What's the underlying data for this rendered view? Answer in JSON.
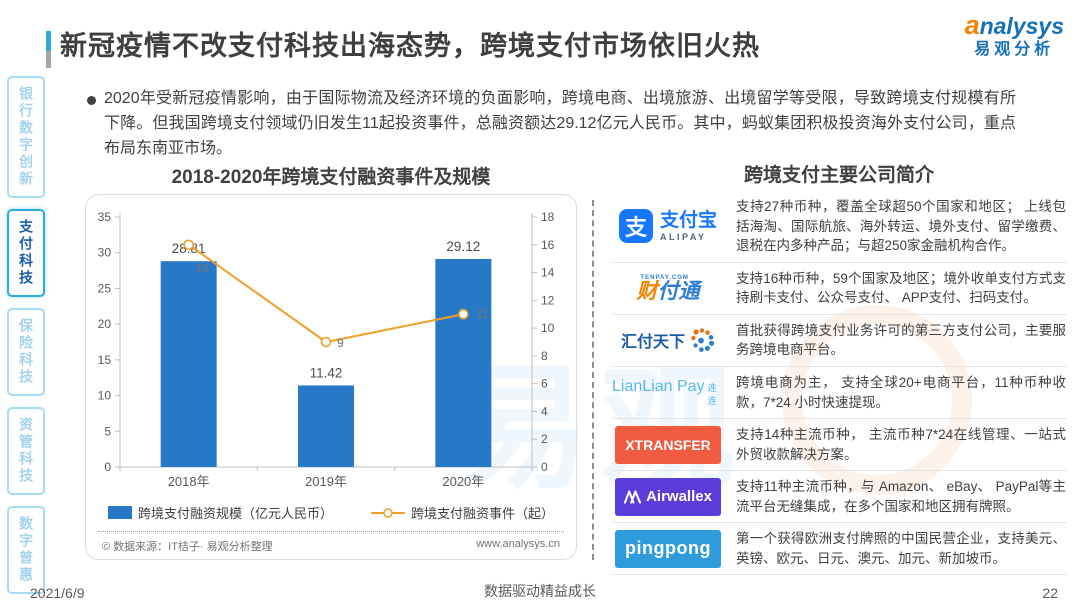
{
  "header": {
    "title": "新冠疫情不改支付科技出海态势，跨境支付市场依旧火热",
    "logo": {
      "brand_a": "a",
      "brand_rest": "nalysys",
      "brand_cn": "易观分析"
    }
  },
  "sidebar": {
    "tabs": [
      {
        "label": "银行数字创新",
        "active": false
      },
      {
        "label": "支付科技",
        "active": true
      },
      {
        "label": "保险科技",
        "active": false
      },
      {
        "label": "资管科技",
        "active": false
      },
      {
        "label": "数字普惠",
        "active": false
      }
    ]
  },
  "summary": {
    "text": "2020年受新冠疫情影响，由于国际物流及经济环境的负面影响，跨境电商、出境旅游、出境留学等受限，导致跨境支付规模有所下降。但我国跨境支付领域仍旧发生11起投资事件，总融资额达29.12亿元人民币。其中，蚂蚁集团积极投资海外支付公司，重点布局东南亚市场。"
  },
  "chart_data": {
    "type": "bar",
    "title": "2018-2020年跨境支付融资事件及规模",
    "categories": [
      "2018年",
      "2019年",
      "2020年"
    ],
    "series": [
      {
        "name": "跨境支付融资规模（亿元人民币）",
        "type": "bar",
        "axis": "left",
        "color": "#2878C8",
        "values": [
          28.81,
          11.42,
          29.12
        ]
      },
      {
        "name": "跨境支付融资事件（起）",
        "type": "line",
        "axis": "right",
        "color": "#EFA028",
        "values": [
          16,
          9,
          11
        ]
      }
    ],
    "left_axis": {
      "min": 0,
      "max": 35,
      "step": 5
    },
    "right_axis": {
      "min": 0,
      "max": 18,
      "step": 2
    },
    "grid": false,
    "legend_position": "bottom",
    "source": "© 数据来源：IT桔子· 易观分析整理",
    "website": "www.analysys.cn"
  },
  "companies": {
    "title": "跨境支付主要公司简介",
    "rows": [
      {
        "id": "alipay",
        "logo": {
          "icon_char": "支",
          "icon_bg": "#1677FF",
          "name_cn": "支付宝",
          "name_en": "ALIPAY"
        },
        "desc": "支持27种币种，覆盖全球超50个国家和地区； 上线包括海淘、国际航旅、海外转运、境外支付、留学缴费、退税在内多种产品；与超250家金融机构合作。"
      },
      {
        "id": "tenpay",
        "logo": {
          "caption": "TENPAY.COM",
          "text_orange": "财",
          "text_blue": "付通"
        },
        "desc": "支持16种币种，59个国家及地区；境外收单支付方式支持刷卡支付、公众号支付、 APP支付、扫码支付。"
      },
      {
        "id": "huifu",
        "logo": {
          "text": "汇付天下"
        },
        "desc": "首批获得跨境支付业务许可的第三方支付公司，主要服务跨境电商平台。"
      },
      {
        "id": "lianlian",
        "logo": {
          "text": "LianLian Pay",
          "suffix": "连连"
        },
        "desc": "跨境电商为主， 支持全球20+电商平台，11种币种收款，7*24 小时快速提现。"
      },
      {
        "id": "xtransfer",
        "logo": {
          "text": "XTRANSFER",
          "bg": "#F15B40"
        },
        "desc": "支持14种主流币种， 主流币种7*24在线管理、一站式外贸收款解决方案。"
      },
      {
        "id": "airwallex",
        "logo": {
          "text": "Airwallex",
          "bg": "#5A3DD8"
        },
        "desc": "支持11种主流币种，与 Amazon、 eBay、 PayPal等主流平台无缝集成，在多个国家和地区拥有牌照。"
      },
      {
        "id": "pingpong",
        "logo": {
          "text": "pingpong",
          "bg": "#2E9BDC"
        },
        "desc": "第一个获得欧洲支付牌照的中国民营企业，支持美元、英镑、欧元、日元、澳元、加元、新加坡币。"
      }
    ]
  },
  "footer": {
    "date": "2021/6/9",
    "slogan": "数据驱动精益成长",
    "page": "22"
  }
}
